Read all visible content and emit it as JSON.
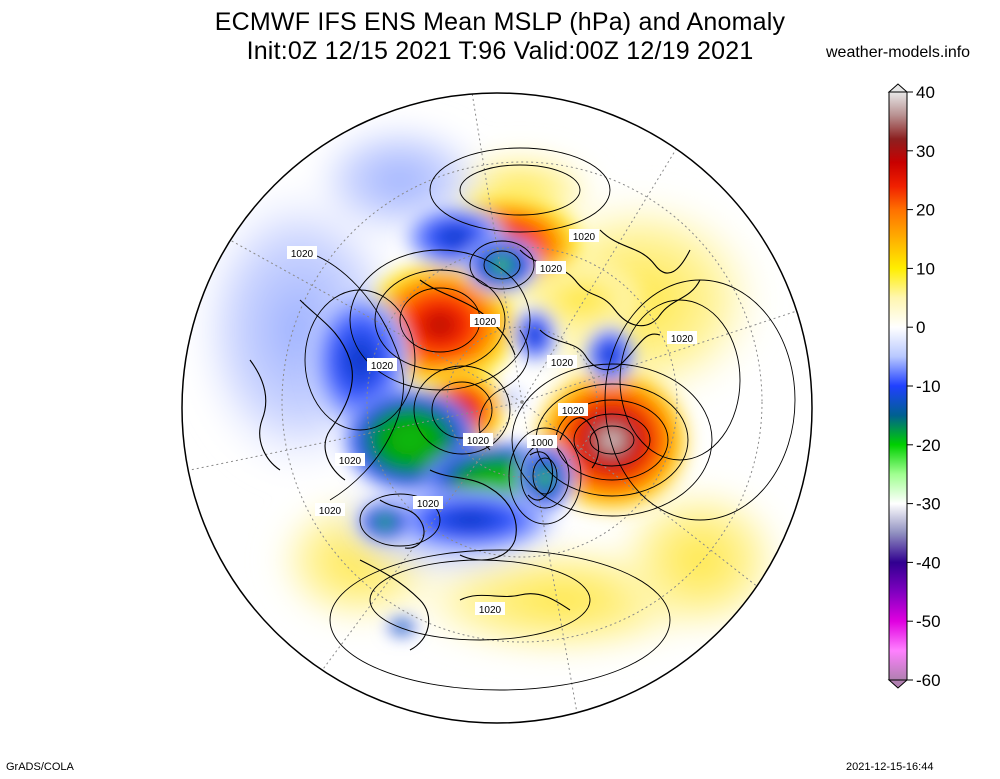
{
  "title_line1": "ECMWF IFS ENS Mean MSLP (hPa) and Anomaly",
  "title_line2": "Init:0Z 12/15 2021  T:96 Valid:00Z 12/19 2021",
  "site": "weather-models.info",
  "footer_left": "GrADS/COLA",
  "footer_right": "2021-12-15-16:44",
  "colorbar": {
    "ticks": [
      "40",
      "30",
      "20",
      "10",
      "0",
      "-10",
      "-20",
      "-30",
      "-40",
      "-50",
      "-60"
    ],
    "range": [
      -60,
      40
    ],
    "stops": [
      {
        "v": 40,
        "c": "#e8e8e8"
      },
      {
        "v": 36,
        "c": "#b89090"
      },
      {
        "v": 32,
        "c": "#8c2020"
      },
      {
        "v": 28,
        "c": "#c80000"
      },
      {
        "v": 24,
        "c": "#f02000"
      },
      {
        "v": 20,
        "c": "#ff7000"
      },
      {
        "v": 15,
        "c": "#ffb000"
      },
      {
        "v": 10,
        "c": "#ffee00"
      },
      {
        "v": 5,
        "c": "#fff6b0"
      },
      {
        "v": 0,
        "c": "#ffffff"
      },
      {
        "v": -5,
        "c": "#b8c8ff"
      },
      {
        "v": -10,
        "c": "#2040ff"
      },
      {
        "v": -15,
        "c": "#006090"
      },
      {
        "v": -20,
        "c": "#00d000"
      },
      {
        "v": -25,
        "c": "#a0ff90"
      },
      {
        "v": -30,
        "c": "#ffffff"
      },
      {
        "v": -35,
        "c": "#9090c0"
      },
      {
        "v": -40,
        "c": "#300090"
      },
      {
        "v": -45,
        "c": "#8000c0"
      },
      {
        "v": -50,
        "c": "#e000e0"
      },
      {
        "v": -55,
        "c": "#ff80ff"
      },
      {
        "v": -60,
        "c": "#b080b0"
      }
    ]
  },
  "map": {
    "projection": "north-polar-stereographic",
    "contour_labels": [
      "1020",
      "1020",
      "1020",
      "1020",
      "1020",
      "1020",
      "1020",
      "1020",
      "1000",
      "1020",
      "1020",
      "1020",
      "1020",
      "1020"
    ],
    "anomaly_centers": [
      {
        "name": "positive-anomaly-alaska-bering",
        "value": 25
      },
      {
        "name": "positive-anomaly-central-arctic",
        "value": 28
      },
      {
        "name": "positive-anomaly-north-atlantic",
        "value": 38
      },
      {
        "name": "negative-anomaly-north-pacific-a",
        "value": -20
      },
      {
        "name": "negative-anomaly-north-pacific-b",
        "value": -20
      },
      {
        "name": "negative-anomaly-siberia",
        "value": -22
      },
      {
        "name": "negative-anomaly-scandinavia",
        "value": -25
      },
      {
        "name": "negative-anomaly-caspian",
        "value": -18
      },
      {
        "name": "negative-anomaly-arabia",
        "value": -15
      }
    ]
  }
}
